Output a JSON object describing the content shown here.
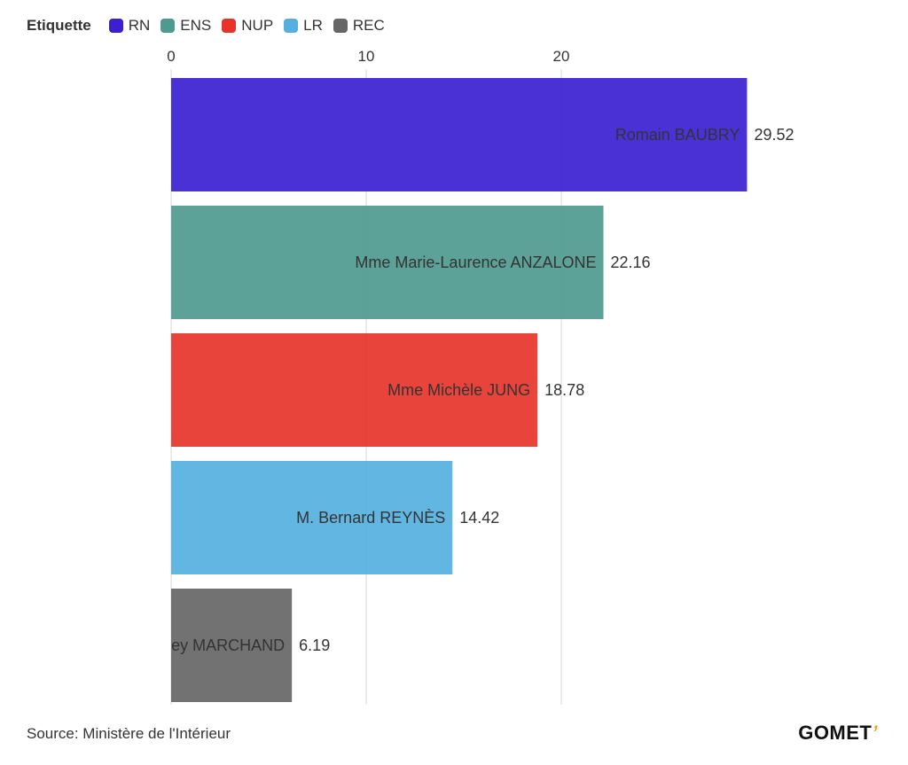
{
  "legend": {
    "title": "Etiquette",
    "items": [
      {
        "label": "RN",
        "color": "#3b1fd1"
      },
      {
        "label": "ENS",
        "color": "#4f9a8f"
      },
      {
        "label": "NUP",
        "color": "#e6342a"
      },
      {
        "label": "LR",
        "color": "#55b0e0"
      },
      {
        "label": "REC",
        "color": "#666666"
      }
    ]
  },
  "chart_data": {
    "type": "bar",
    "orientation": "horizontal",
    "categories": [
      "Romain BAUBRY",
      "Mme Marie-Laurence ANZALONE",
      "Mme Michèle JUNG",
      "M. Bernard REYNÈS",
      "M. Geoffrey MARCHAND"
    ],
    "values": [
      29.52,
      22.16,
      18.78,
      14.42,
      6.19
    ],
    "value_labels": [
      "29.52",
      "22.16",
      "18.78",
      "14.42",
      "6.19"
    ],
    "colors": [
      "#3b1fd1",
      "#4f9a8f",
      "#e6342a",
      "#55b0e0",
      "#666666"
    ],
    "xticks": [
      0,
      10,
      20
    ],
    "xlim": [
      0,
      30
    ],
    "grid": true,
    "legend_position": "top-left"
  },
  "footer": {
    "source": "Source: Ministère de l'Intérieur",
    "logo_text": "GOMET",
    "logo_mark": "’"
  }
}
